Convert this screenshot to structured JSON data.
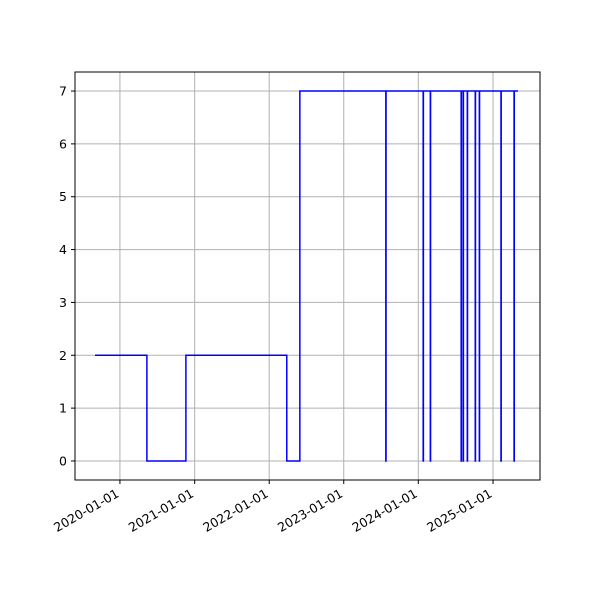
{
  "chart_data": {
    "type": "line",
    "drawstyle": "steps-post",
    "x": [
      "2019-09-01",
      "2020-05-12",
      "2020-11-19",
      "2022-03-28",
      "2022-05-31",
      "2023-07-26",
      "2023-07-27",
      "2024-01-25",
      "2024-01-26",
      "2024-02-29",
      "2024-03-01",
      "2024-07-29",
      "2024-07-30",
      "2024-08-08",
      "2024-08-09",
      "2024-08-28",
      "2024-08-29",
      "2024-10-06",
      "2024-10-07",
      "2024-10-26",
      "2024-10-27",
      "2025-02-09",
      "2025-02-10",
      "2025-04-14",
      "2025-04-15",
      "2025-05-03"
    ],
    "series": [
      {
        "color": "#0000ff",
        "values": [
          2,
          0,
          2,
          0,
          7,
          0,
          7,
          0,
          7,
          0,
          7,
          0,
          7,
          0,
          7,
          0,
          7,
          0,
          7,
          0,
          7,
          0,
          7,
          0,
          7,
          7
        ]
      }
    ],
    "xlim": [
      "2019-05-26",
      "2025-08-19"
    ],
    "xticks": [
      "2020-01-01",
      "2021-01-01",
      "2022-01-01",
      "2023-01-01",
      "2024-01-01",
      "2025-01-01"
    ],
    "ylim": [
      -0.36,
      7.36
    ],
    "yticks": [
      0,
      1,
      2,
      3,
      4,
      5,
      6,
      7
    ],
    "grid": true
  }
}
